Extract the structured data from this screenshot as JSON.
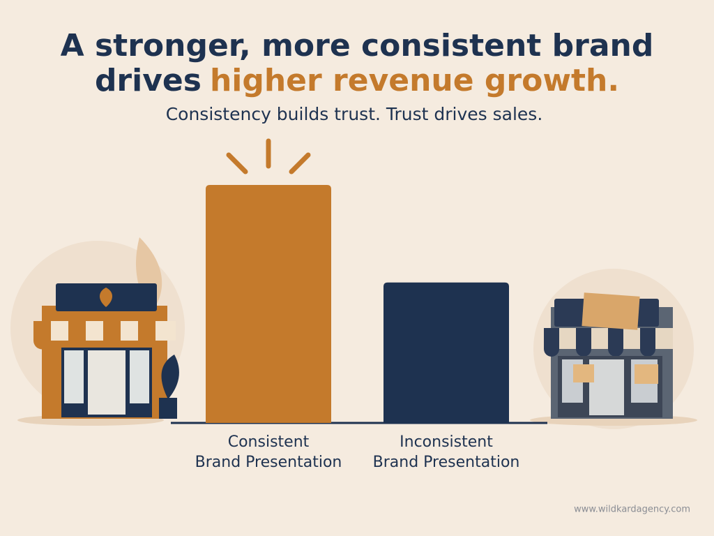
{
  "chart_data": {
    "type": "bar",
    "title_line1": "A stronger, more consistent brand",
    "title_line2": "drives",
    "title_highlight": "higher revenue growth.",
    "subtitle": "Consistency builds trust. Trust drives sales.",
    "categories": [
      [
        "Consistent",
        "Brand Presentation"
      ],
      [
        "Inconsistent",
        "Brand Presentation"
      ]
    ],
    "values": [
      100,
      59
    ],
    "colors": [
      "#c47a2c",
      "#1e3250"
    ],
    "ylim": [
      0,
      100
    ],
    "source": "www.wildkardagency.com"
  }
}
